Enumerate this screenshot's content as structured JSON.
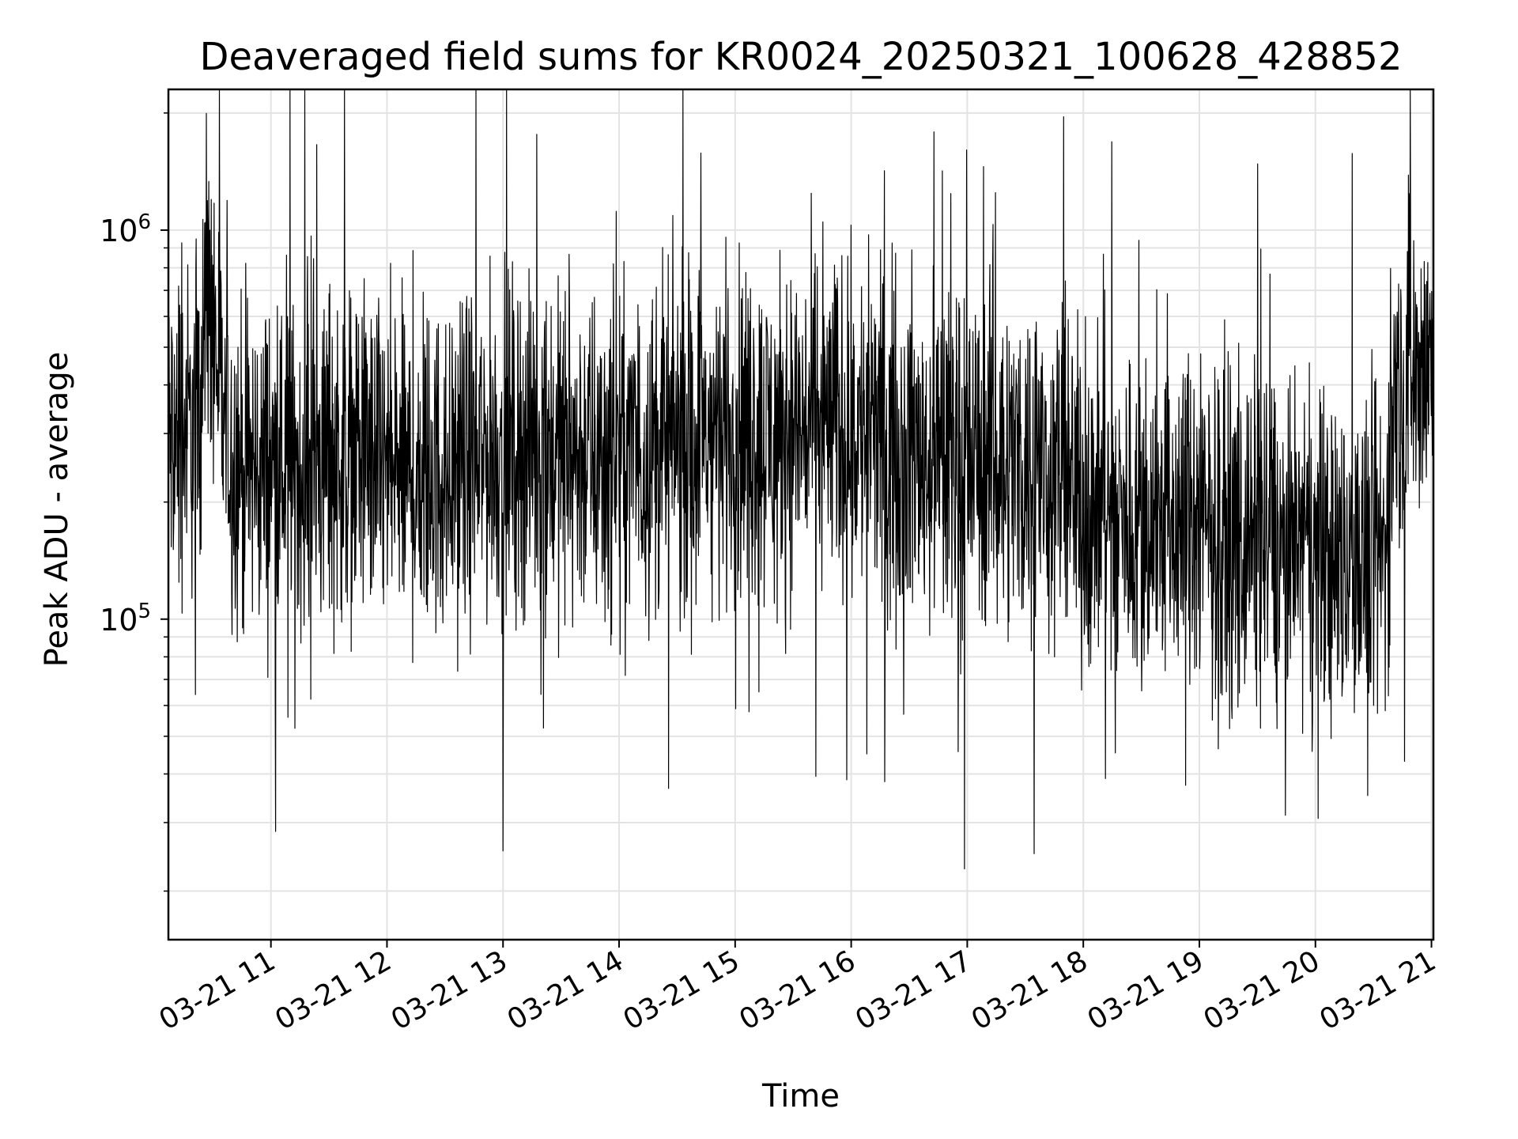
{
  "chart_data": {
    "type": "line",
    "title": "Deaveraged field sums for KR0024_20250321_100628_428852",
    "xlabel": "Time",
    "ylabel": "Peak ADU - average",
    "x_range": [
      "2025-03-21 10:07",
      "2025-03-21 21:01"
    ],
    "x_tick_labels": [
      "03-21 11",
      "03-21 12",
      "03-21 13",
      "03-21 14",
      "03-21 15",
      "03-21 16",
      "03-21 17",
      "03-21 18",
      "03-21 19",
      "03-21 20",
      "03-21 21"
    ],
    "y_scale": "log",
    "ylim": [
      15000,
      2300000
    ],
    "y_tick_labels": [
      {
        "base": "10",
        "exp": "5",
        "value": 100000
      },
      {
        "base": "10",
        "exp": "6",
        "value": 1000000
      }
    ],
    "grid": true,
    "line_color": "#000000",
    "series": [
      {
        "x": [
          "2025-03-21 10:07",
          "2025-03-21 10:15",
          "2025-03-21 10:20",
          "2025-03-21 10:25",
          "2025-03-21 10:30",
          "2025-03-21 10:35",
          "2025-03-21 10:40",
          "2025-03-21 10:50",
          "2025-03-21 11:00",
          "2025-03-21 11:15",
          "2025-03-21 11:30",
          "2025-03-21 11:45",
          "2025-03-21 12:00",
          "2025-03-21 12:15",
          "2025-03-21 12:30",
          "2025-03-21 12:45",
          "2025-03-21 13:00",
          "2025-03-21 13:15",
          "2025-03-21 13:30",
          "2025-03-21 13:45",
          "2025-03-21 14:00",
          "2025-03-21 14:15",
          "2025-03-21 14:30",
          "2025-03-21 14:45",
          "2025-03-21 15:00",
          "2025-03-21 15:15",
          "2025-03-21 15:30",
          "2025-03-21 15:45",
          "2025-03-21 16:00",
          "2025-03-21 16:15",
          "2025-03-21 16:30",
          "2025-03-21 16:45",
          "2025-03-21 17:00",
          "2025-03-21 17:15",
          "2025-03-21 17:30",
          "2025-03-21 17:45",
          "2025-03-21 18:00",
          "2025-03-21 18:15",
          "2025-03-21 18:30",
          "2025-03-21 18:45",
          "2025-03-21 19:00",
          "2025-03-21 19:15",
          "2025-03-21 19:30",
          "2025-03-21 19:45",
          "2025-03-21 20:00",
          "2025-03-21 20:15",
          "2025-03-21 20:30",
          "2025-03-21 20:36",
          "2025-03-21 20:40",
          "2025-03-21 20:50",
          "2025-03-21 21:01"
        ],
        "y": [
          280000,
          320000,
          300000,
          520000,
          600000,
          330000,
          260000,
          240000,
          250000,
          240000,
          260000,
          270000,
          240000,
          230000,
          240000,
          260000,
          270000,
          280000,
          270000,
          260000,
          260000,
          270000,
          290000,
          300000,
          310000,
          300000,
          310000,
          320000,
          310000,
          290000,
          270000,
          260000,
          250000,
          260000,
          250000,
          240000,
          200000,
          180000,
          180000,
          180000,
          170000,
          160000,
          160000,
          150000,
          150000,
          140000,
          140000,
          150000,
          350000,
          420000,
          470000
        ]
      }
    ]
  }
}
